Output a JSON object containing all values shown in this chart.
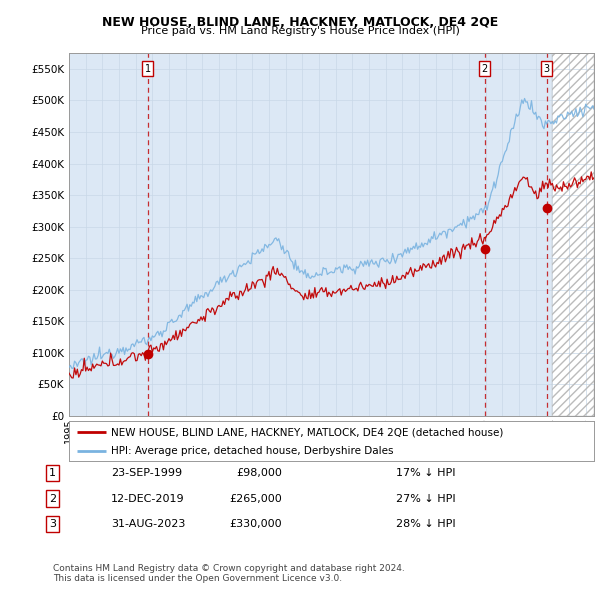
{
  "title": "NEW HOUSE, BLIND LANE, HACKNEY, MATLOCK, DE4 2QE",
  "subtitle": "Price paid vs. HM Land Registry's House Price Index (HPI)",
  "ylim": [
    0,
    575000
  ],
  "xlim_start": 1995.0,
  "xlim_end": 2026.5,
  "yticks": [
    0,
    50000,
    100000,
    150000,
    200000,
    250000,
    300000,
    350000,
    400000,
    450000,
    500000,
    550000
  ],
  "ytick_labels": [
    "£0",
    "£50K",
    "£100K",
    "£150K",
    "£200K",
    "£250K",
    "£300K",
    "£350K",
    "£400K",
    "£450K",
    "£500K",
    "£550K"
  ],
  "sale_dates": [
    1999.73,
    2019.95,
    2023.67
  ],
  "sale_prices": [
    98000,
    265000,
    330000
  ],
  "sale_labels": [
    "1",
    "2",
    "3"
  ],
  "hpi_line_color": "#7ab3e0",
  "price_line_color": "#c00000",
  "vline_color": "#c00000",
  "grid_color": "#c8d8e8",
  "bg_color": "#ffffff",
  "plot_bg_color": "#dce8f5",
  "future_bg_color": "#e8e8e8",
  "hatch_color": "#bbbbbb",
  "future_start": 2024.0,
  "legend_entries": [
    "NEW HOUSE, BLIND LANE, HACKNEY, MATLOCK, DE4 2QE (detached house)",
    "HPI: Average price, detached house, Derbyshire Dales"
  ],
  "table_data": [
    [
      "1",
      "23-SEP-1999",
      "£98,000",
      "17% ↓ HPI"
    ],
    [
      "2",
      "12-DEC-2019",
      "£265,000",
      "27% ↓ HPI"
    ],
    [
      "3",
      "31-AUG-2023",
      "£330,000",
      "28% ↓ HPI"
    ]
  ],
  "footnote": "Contains HM Land Registry data © Crown copyright and database right 2024.\nThis data is licensed under the Open Government Licence v3.0."
}
